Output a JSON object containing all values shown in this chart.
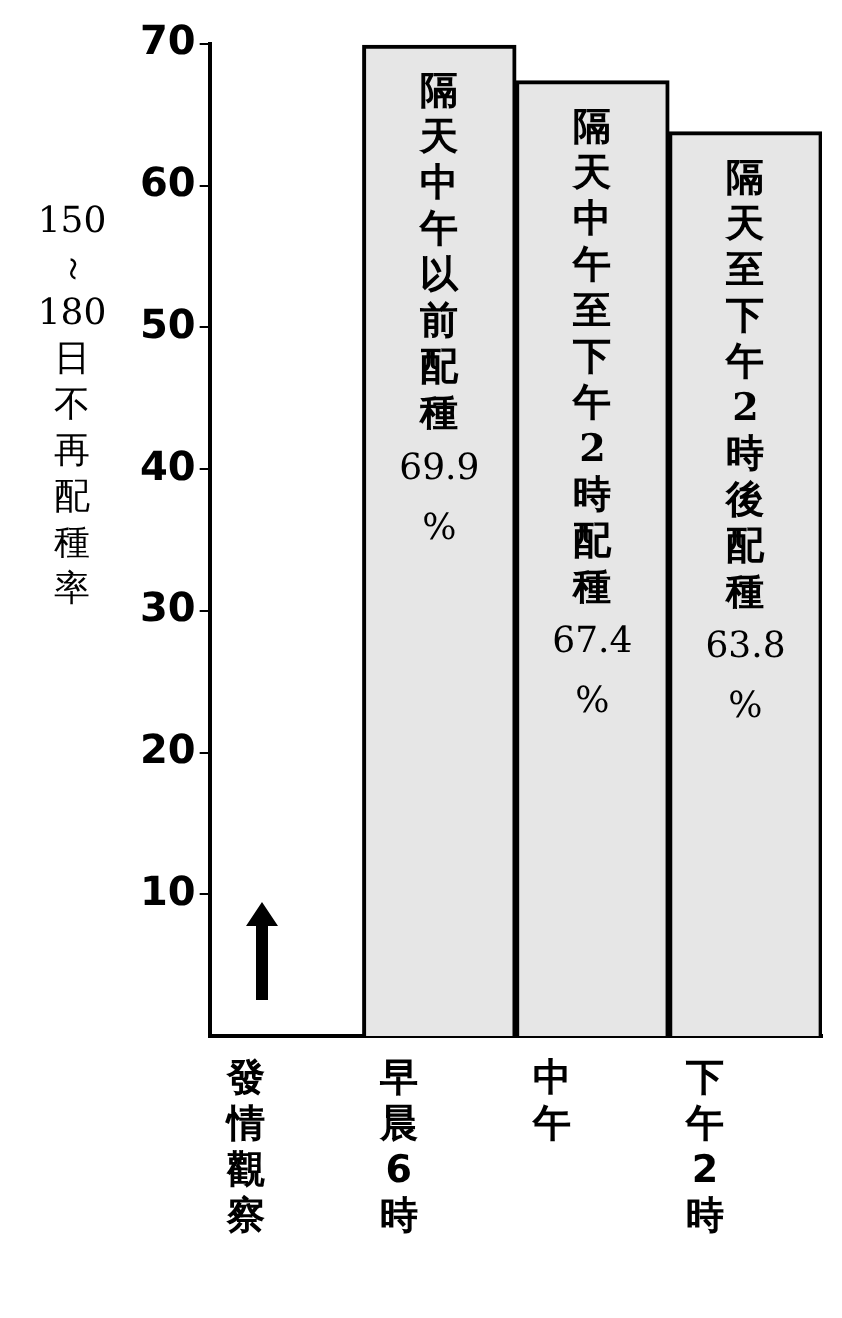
{
  "chart_data": {
    "type": "bar",
    "ylabel": "150～180日不再配種率",
    "categories": [
      "發情觀察",
      "早晨6時",
      "中午",
      "下午2時"
    ],
    "values": [
      null,
      69.9,
      67.4,
      63.8
    ],
    "value_labels": [
      null,
      "69.9 %",
      "67.4 %",
      "63.8 %"
    ],
    "color": "#e6e6e6",
    "ylim": [
      0,
      70
    ],
    "yticks": [
      10,
      20,
      30,
      40,
      50,
      60,
      70
    ],
    "grid": false,
    "legend": false,
    "annotations": [
      "隔天中午以前配種",
      "隔天中午至下午2時配種",
      "隔天至下午2時後配種"
    ]
  }
}
